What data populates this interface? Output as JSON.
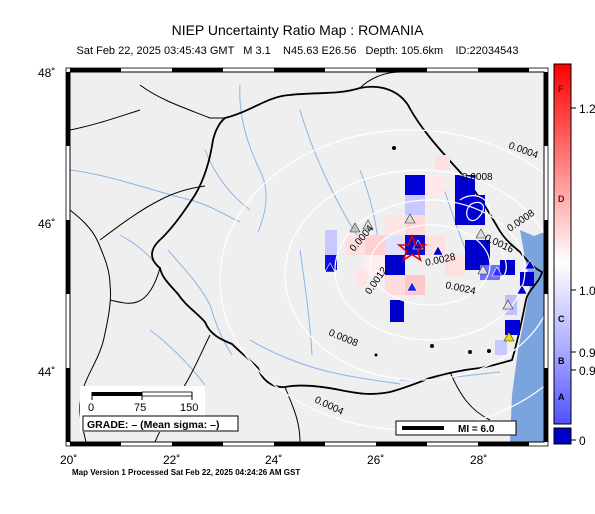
{
  "title": "NIEP Uncertainty Ratio Map : ROMANIA",
  "subtitle": "Sat Feb 22, 2025 03:45:43 GMT   M 3.1    N45.63 E26.56   Depth: 105.6km    ID:22034543",
  "footer": "Map Version 1 Processed Sat Feb 22, 2025 04:24:26 AM GST",
  "axes": {
    "lat_labels": [
      "48˚",
      "46˚",
      "44˚"
    ],
    "lon_labels": [
      "20˚",
      "22˚",
      "24˚",
      "26˚",
      "28˚"
    ]
  },
  "contours": [
    "0.0004",
    "0.0008",
    "0.0012",
    "0.0024",
    "0.0028",
    "0.0016",
    "0.0008",
    "0.0004",
    "0.0008",
    "0.0004"
  ],
  "scalebar": {
    "labels": [
      "0",
      "75",
      "150"
    ]
  },
  "grade_label": "GRADE: – (Mean sigma: –)",
  "mi_label": "MI = 6.0",
  "colorbar": {
    "letters": [
      "F",
      "D",
      "C",
      "B",
      "A"
    ],
    "ticks": [
      "1.2",
      "1.0",
      "0.9",
      "0.9",
      "0"
    ],
    "colors": {
      "top": "#ff0000",
      "mid": "#ffffff",
      "low": "#8080ff",
      "bottom": "#0000cc"
    }
  },
  "colors": {
    "land": "#efefef",
    "sea": "#7ba3dd",
    "rivers": "#8ab4e8",
    "border": "#000000",
    "epicenter": "#e00000"
  }
}
